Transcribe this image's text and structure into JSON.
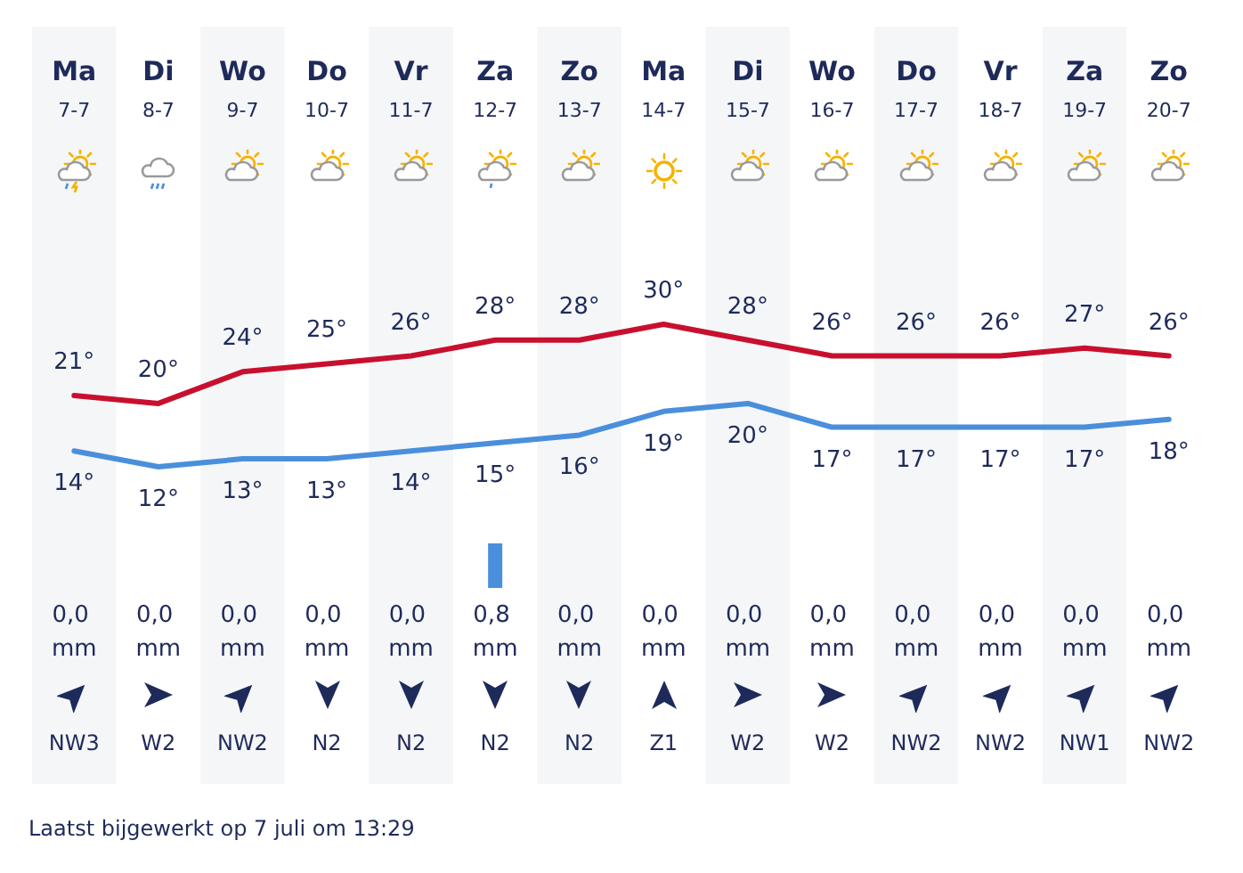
{
  "chart_data": [
    {
      "type": "line",
      "categories": [
        "Ma\n7-7",
        "Di\n8-7",
        "Wo\n9-7",
        "Do\n10-7",
        "Vr\n11-7",
        "Za\n12-7",
        "Zo\n13-7",
        "Ma\n14-7",
        "Di\n15-7",
        "Wo\n16-7",
        "Do\n17-7",
        "Vr\n18-7",
        "Za\n19-7",
        "Zo\n20-7"
      ],
      "series": [
        {
          "color": "#c8102e",
          "values": [
            21,
            20,
            24,
            25,
            26,
            28,
            28,
            30,
            28,
            26,
            26,
            26,
            27,
            26
          ],
          "value_labels": [
            "21°",
            "20°",
            "24°",
            "25°",
            "26°",
            "28°",
            "28°",
            "30°",
            "28°",
            "26°",
            "26°",
            "26°",
            "27°",
            "26°"
          ]
        },
        {
          "color": "#4a8fdc",
          "values": [
            14,
            12,
            13,
            13,
            14,
            15,
            16,
            19,
            20,
            17,
            17,
            17,
            17,
            18
          ],
          "value_labels": [
            "14°",
            "12°",
            "13°",
            "13°",
            "14°",
            "15°",
            "16°",
            "19°",
            "20°",
            "17°",
            "17°",
            "17°",
            "17°",
            "18°"
          ]
        }
      ],
      "grid": false,
      "tick_labels": "x",
      "marker": "none",
      "line_style": "solid",
      "annotations": [
        "NW3",
        "W2",
        "NW2",
        "N2",
        "N2",
        "N2",
        "N2",
        "Z1",
        "W2",
        "W2",
        "NW2",
        "NW2",
        "NW1",
        "NW2",
        "Laatst bijgewerkt op 7 juli om 13:29"
      ]
    },
    {
      "type": "bar",
      "categories": [
        null,
        null,
        null,
        null,
        null,
        null,
        null,
        null,
        null,
        null,
        null,
        null,
        null,
        null
      ],
      "color": "#4a8fdc",
      "values": [
        0,
        0,
        0,
        0,
        0,
        0.8,
        0,
        0,
        0,
        0,
        0,
        0,
        0,
        0
      ],
      "value_labels": [
        "0,0 mm",
        "0,0 mm",
        "0,0 mm",
        "0,0 mm",
        "0,0 mm",
        "0,8 mm",
        "0,0 mm",
        "0,0 mm",
        "0,0 mm",
        "0,0 mm",
        "0,0 mm",
        "0,0 mm",
        "0,0 mm",
        "0,0 mm"
      ],
      "tick_labels": false
    }
  ]
}
